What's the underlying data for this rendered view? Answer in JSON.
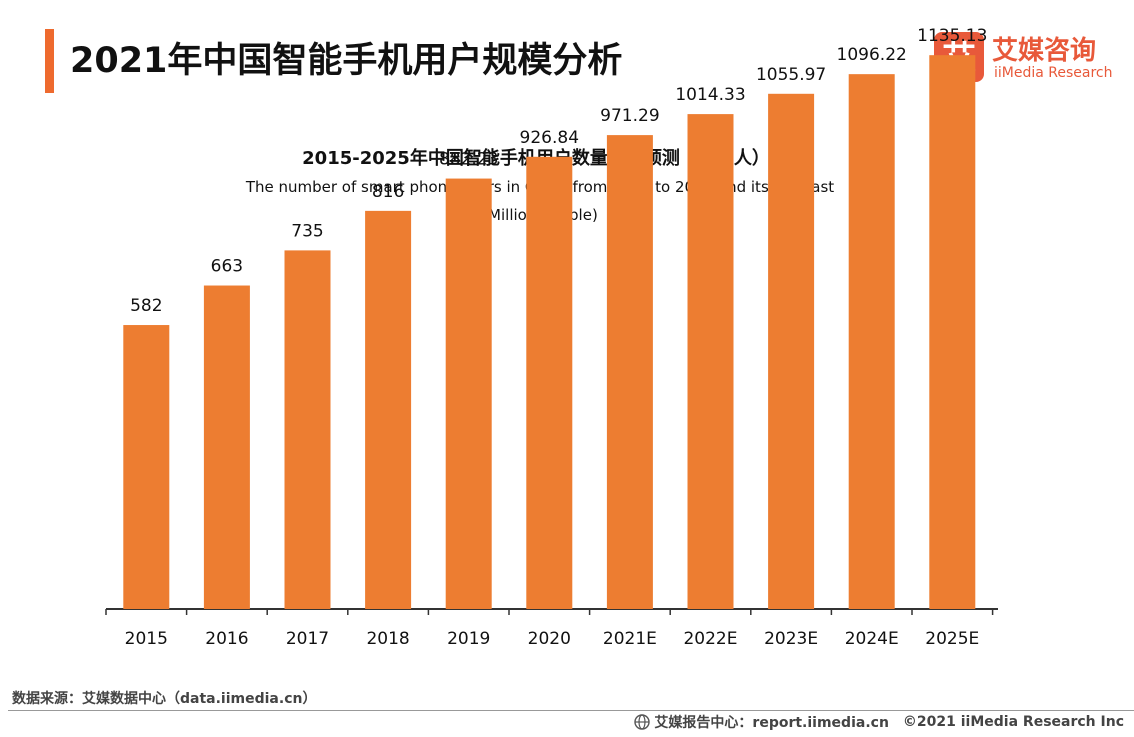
{
  "header": {
    "title": "2021年中国智能手机用户规模分析",
    "accent_color": "#ee6a2e"
  },
  "logo": {
    "mark_char": "艾",
    "name_cn": "艾媒咨询",
    "name_en": "iiMedia Research",
    "color": "#e8593a"
  },
  "chart_data": {
    "type": "bar",
    "title": "2015-2025年中国智能手机用户数量及其预测（百万人）",
    "subtitle": "The number of smart phone users in China from 2015 to 2025 and its forecast",
    "unit": "(Million people)",
    "categories": [
      "2015",
      "2016",
      "2017",
      "2018",
      "2019",
      "2020",
      "2021E",
      "2022E",
      "2023E",
      "2024E",
      "2025E"
    ],
    "values": [
      582,
      663,
      735,
      816,
      882.23,
      926.84,
      971.29,
      1014.33,
      1055.97,
      1096.22,
      1135.13
    ],
    "value_labels": [
      "582",
      "663",
      "735",
      "816",
      "882.23",
      "926.84",
      "971.29",
      "1014.33",
      "1055.97",
      "1096.22",
      "1135.13"
    ],
    "bar_color": "#ed7d31",
    "xlabel": "",
    "ylabel": "",
    "ylim": [
      0,
      1200
    ],
    "grid": false,
    "legend": "none"
  },
  "footer": {
    "source": "数据来源：艾媒数据中心（data.iimedia.cn）",
    "report_center": "艾媒报告中心：report.iimedia.cn",
    "copyright": "©2021  iiMedia Research  Inc"
  }
}
